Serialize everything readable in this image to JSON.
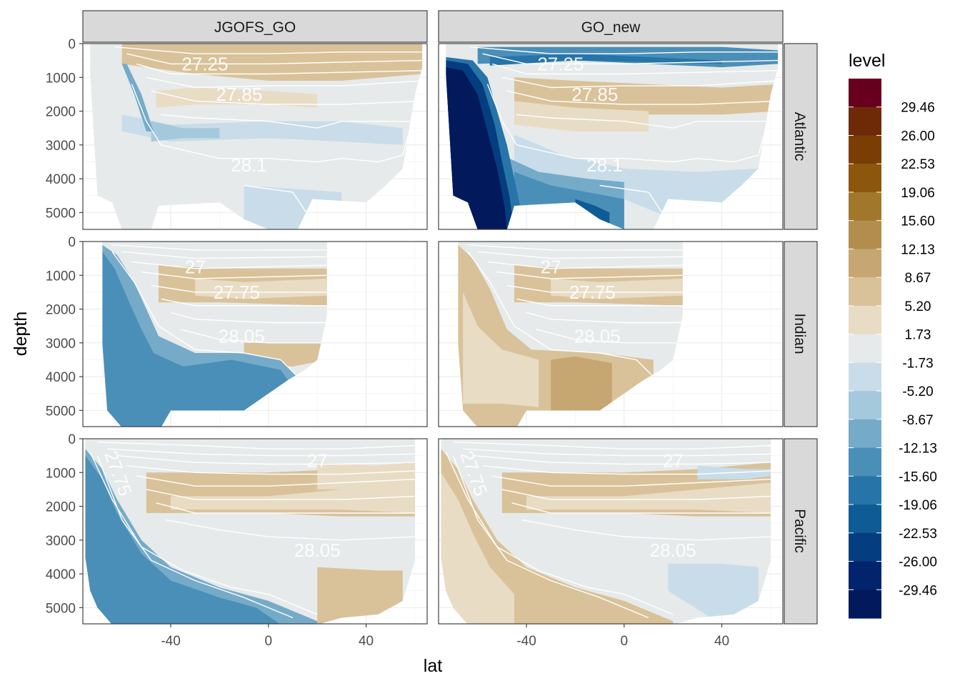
{
  "chart_data": {
    "type": "heatmap",
    "subtype": "faceted filled-contour sections",
    "xlabel": "lat",
    "ylabel": "depth",
    "x_ticks": [
      -40,
      0,
      40
    ],
    "x_tick_labels": [
      "-40",
      "0",
      "40"
    ],
    "y_ticks": [
      0,
      1000,
      2000,
      3000,
      4000,
      5000
    ],
    "y_tick_labels": [
      "0",
      "1000",
      "2000",
      "3000",
      "4000",
      "5000"
    ],
    "xlim": [
      -76,
      65
    ],
    "ylim": [
      5500,
      0
    ],
    "columns": [
      "JGOFS_GO",
      "GO_new"
    ],
    "rows": [
      "Atlantic",
      "Indian",
      "Pacific"
    ],
    "legend": {
      "title": "level",
      "labels": [
        "29.46",
        "26.00",
        "22.53",
        "19.06",
        "15.60",
        "12.13",
        "8.67",
        "5.20",
        "1.73",
        "-1.73",
        "-5.20",
        "-8.67",
        "-12.13",
        "-15.60",
        "-19.06",
        "-22.53",
        "-26.00",
        "-29.46"
      ],
      "colors": [
        "#67001f",
        "#6e2a06",
        "#7a3e04",
        "#8c560c",
        "#a1772c",
        "#b38d4e",
        "#c6a671",
        "#d9c299",
        "#e8dcc4",
        "#e6eaea",
        "#c8dde9",
        "#a5c9dc",
        "#75abc9",
        "#4a8fb8",
        "#2774a9",
        "#0f5b95",
        "#053e80",
        "#02246d",
        "#021a5c"
      ]
    },
    "panels": [
      {
        "column": "JGOFS_GO",
        "row": "Atlantic",
        "contour_labels": [
          {
            "text": "27.25",
            "lat": -26,
            "depth": 600
          },
          {
            "text": "27.85",
            "lat": -12,
            "depth": 1500
          },
          {
            "text": "28.1",
            "lat": -8,
            "depth": 3600
          }
        ]
      },
      {
        "column": "GO_new",
        "row": "Atlantic",
        "contour_labels": [
          {
            "text": "27.25",
            "lat": -26,
            "depth": 600
          },
          {
            "text": "27.85",
            "lat": -12,
            "depth": 1500
          },
          {
            "text": "28.1",
            "lat": -8,
            "depth": 3600
          }
        ]
      },
      {
        "column": "JGOFS_GO",
        "row": "Indian",
        "contour_labels": [
          {
            "text": "27",
            "lat": -30,
            "depth": 750
          },
          {
            "text": "27.75",
            "lat": -13,
            "depth": 1500
          },
          {
            "text": "28.05",
            "lat": -11,
            "depth": 2800
          }
        ]
      },
      {
        "column": "GO_new",
        "row": "Indian",
        "contour_labels": [
          {
            "text": "27",
            "lat": -30,
            "depth": 750
          },
          {
            "text": "27.75",
            "lat": -13,
            "depth": 1500
          },
          {
            "text": "28.05",
            "lat": -11,
            "depth": 2800
          }
        ]
      },
      {
        "column": "JGOFS_GO",
        "row": "Pacific",
        "contour_labels": [
          {
            "text": "27",
            "lat": 20,
            "depth": 650
          },
          {
            "text": "27.75",
            "lat": -64,
            "depth": 900
          },
          {
            "text": "28.05",
            "lat": 20,
            "depth": 3300
          }
        ]
      },
      {
        "column": "GO_new",
        "row": "Pacific",
        "contour_labels": [
          {
            "text": "27",
            "lat": 20,
            "depth": 650
          },
          {
            "text": "27.75",
            "lat": -64,
            "depth": 900
          },
          {
            "text": "28.05",
            "lat": 20,
            "depth": 3300
          }
        ]
      }
    ]
  }
}
